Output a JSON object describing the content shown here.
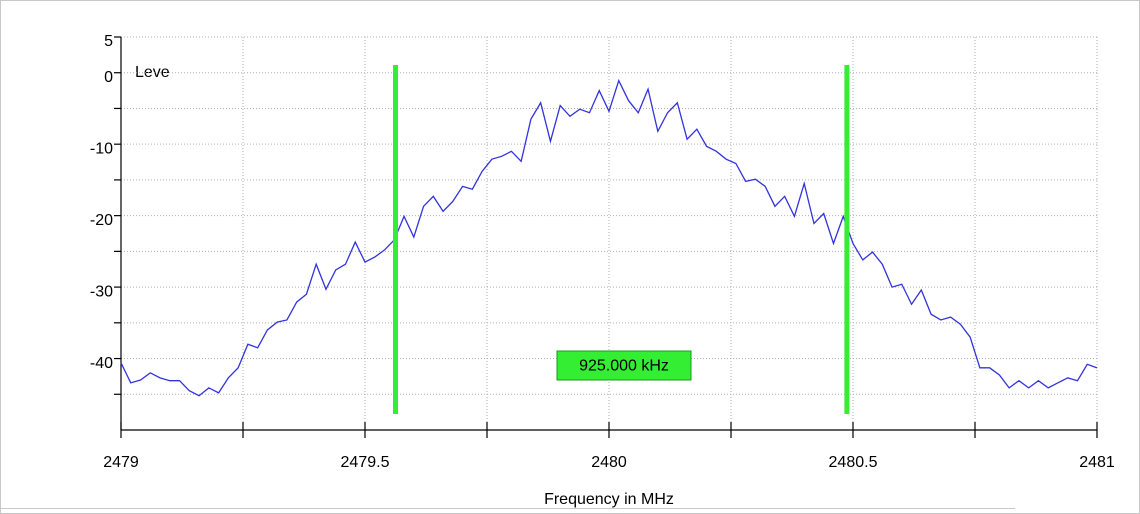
{
  "chart_data": {
    "type": "line",
    "y_label": "Leve",
    "x_label": "Frequency in MHz",
    "annotation": "925.000 kHz",
    "xlim": [
      2479,
      2481
    ],
    "ylim": [
      -50,
      5
    ],
    "xticks": [
      2479,
      2479.5,
      2480,
      2480.5,
      2481
    ],
    "xminor": [
      2479.25,
      2479.75,
      2480.25,
      2480.75
    ],
    "yticks": [
      5,
      0,
      -10,
      -20,
      -30,
      -40
    ],
    "yminor": [
      -5,
      -15,
      -25,
      -35,
      -45
    ],
    "grid": true,
    "markers": {
      "color": "#33ee33",
      "x": [
        2479.5625,
        2480.4875
      ]
    },
    "series": [
      {
        "color": "#3333dd",
        "x": [
          2479.0,
          2479.02,
          2479.04,
          2479.06,
          2479.08,
          2479.1,
          2479.12,
          2479.14,
          2479.16,
          2479.18,
          2479.2,
          2479.22,
          2479.24,
          2479.26,
          2479.28,
          2479.3,
          2479.32,
          2479.34,
          2479.36,
          2479.38,
          2479.4,
          2479.42,
          2479.44,
          2479.46,
          2479.48,
          2479.5,
          2479.52,
          2479.54,
          2479.56,
          2479.58,
          2479.6,
          2479.62,
          2479.64,
          2479.66,
          2479.68,
          2479.7,
          2479.72,
          2479.74,
          2479.76,
          2479.78,
          2479.8,
          2479.82,
          2479.84,
          2479.86,
          2479.88,
          2479.9,
          2479.92,
          2479.94,
          2479.96,
          2479.98,
          2480.0,
          2480.02,
          2480.04,
          2480.06,
          2480.08,
          2480.1,
          2480.12,
          2480.14,
          2480.16,
          2480.18,
          2480.2,
          2480.22,
          2480.24,
          2480.26,
          2480.28,
          2480.3,
          2480.32,
          2480.34,
          2480.36,
          2480.38,
          2480.4,
          2480.42,
          2480.44,
          2480.46,
          2480.48,
          2480.5,
          2480.52,
          2480.54,
          2480.56,
          2480.58,
          2480.6,
          2480.62,
          2480.64,
          2480.66,
          2480.68,
          2480.7,
          2480.72,
          2480.74,
          2480.76,
          2480.78,
          2480.8,
          2480.82,
          2480.84,
          2480.86,
          2480.88,
          2480.9,
          2480.92,
          2480.94,
          2480.96,
          2480.98,
          2481.0
        ],
        "values": [
          -40.6,
          -43.4,
          -43,
          -42,
          -42.7,
          -43.1,
          -43.1,
          -44.5,
          -45.2,
          -44.1,
          -44.8,
          -42.7,
          -41.3,
          -38,
          -38.5,
          -36,
          -34.9,
          -34.6,
          -32.1,
          -31,
          -26.8,
          -30.3,
          -27.6,
          -26.8,
          -23.7,
          -26.5,
          -25.8,
          -24.8,
          -23.4,
          -20.1,
          -23,
          -18.7,
          -17.3,
          -19.4,
          -18,
          -15.9,
          -16.3,
          -13.8,
          -12.1,
          -11.7,
          -11,
          -12.4,
          -6.5,
          -4.2,
          -9.6,
          -4.6,
          -6.1,
          -5.1,
          -5.6,
          -2.5,
          -5.4,
          -1.1,
          -3.9,
          -5.6,
          -2.3,
          -8.2,
          -5.6,
          -4.2,
          -9.3,
          -7.9,
          -10.3,
          -11,
          -12.1,
          -12.7,
          -15.2,
          -14.9,
          -15.9,
          -18.7,
          -17.3,
          -20.1,
          -15.5,
          -21.1,
          -19.7,
          -23.9,
          -20.1,
          -23.9,
          -26.2,
          -25.1,
          -26.8,
          -30,
          -29.6,
          -32.4,
          -30.4,
          -33.8,
          -34.6,
          -34.2,
          -35.2,
          -37,
          -41.3,
          -41.3,
          -42.3,
          -44.1,
          -43.1,
          -44.1,
          -43.1,
          -44.1,
          -43.4,
          -42.7,
          -43.1,
          -40.8,
          -41.3
        ]
      }
    ]
  }
}
